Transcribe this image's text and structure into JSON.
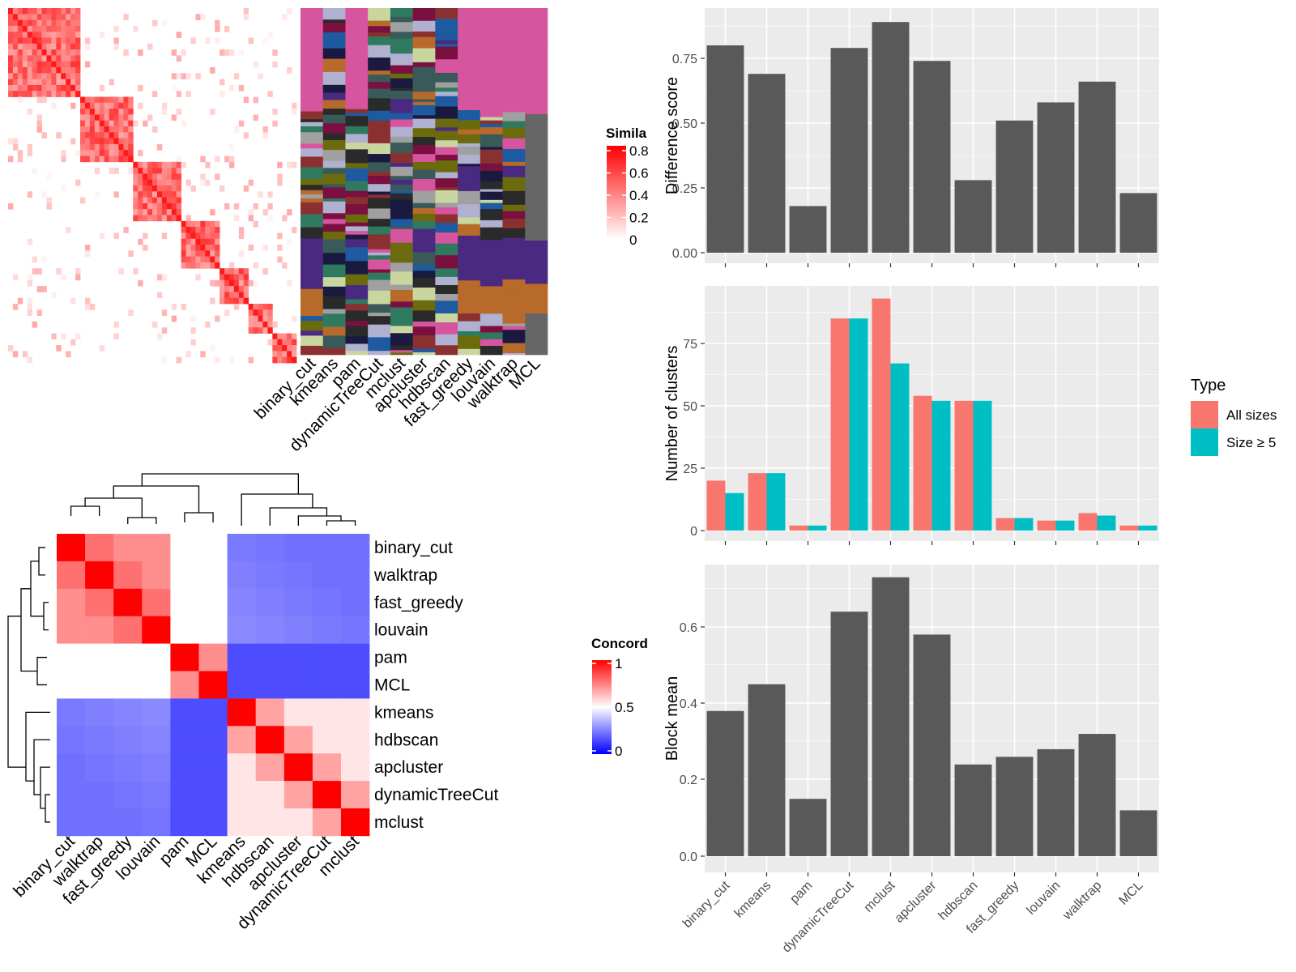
{
  "colors": {
    "panel_bg": "#ebebeb",
    "bar_gray": "#595959",
    "all_sizes": "#f8766d",
    "size_ge5": "#00bfc4",
    "sim_high": "#ff0000",
    "conc_high": "#ff0000",
    "conc_low": "#0000ff",
    "magenta_band": "#d6559e",
    "purple_band": "#4a2a80",
    "orange_band": "#b86a2a",
    "gray_col": "#666666"
  },
  "heatmap1": {
    "legend_title": "Simila",
    "legend_ticks": [
      "0.8",
      "0.6",
      "0.4",
      "0.2",
      "0"
    ],
    "columns": [
      "binary_cut",
      "kmeans",
      "pam",
      "dynamicTreeCut",
      "mclust",
      "apcluster",
      "hdbscan",
      "fast_greedy",
      "louvain",
      "walktrap",
      "MCL"
    ]
  },
  "heatmap2": {
    "legend_title": "Concord",
    "legend_ticks": [
      "1",
      "0.5",
      "0"
    ],
    "rows": [
      "binary_cut",
      "walktrap",
      "fast_greedy",
      "louvain",
      "pam",
      "MCL",
      "kmeans",
      "hdbscan",
      "apcluster",
      "dynamicTreeCut",
      "mclust"
    ]
  },
  "chart_data": [
    {
      "type": "bar",
      "categories": [
        "binary_cut",
        "kmeans",
        "pam",
        "dynamicTreeCut",
        "mclust",
        "apcluster",
        "hdbscan",
        "fast_greedy",
        "louvain",
        "walktrap",
        "MCL"
      ],
      "values": [
        0.8,
        0.69,
        0.18,
        0.79,
        0.89,
        0.74,
        0.28,
        0.51,
        0.58,
        0.66,
        0.23
      ],
      "ylabel": "Difference score",
      "yticks": [
        "0.00",
        "0.25",
        "0.50",
        "0.75"
      ],
      "ylim": [
        0,
        0.9
      ]
    },
    {
      "type": "bar",
      "categories": [
        "binary_cut",
        "kmeans",
        "pam",
        "dynamicTreeCut",
        "mclust",
        "apcluster",
        "hdbscan",
        "fast_greedy",
        "louvain",
        "walktrap",
        "MCL"
      ],
      "ylabel": "Number of clusters",
      "yticks": [
        "0",
        "25",
        "50",
        "75"
      ],
      "ylim": [
        0,
        97
      ],
      "legend_title": "Type",
      "legend_position": "right",
      "series": [
        {
          "name": "All sizes",
          "values": [
            20,
            23,
            2,
            85,
            93,
            54,
            52,
            5,
            4,
            7,
            2
          ]
        },
        {
          "name": "Size ≥ 5",
          "values": [
            15,
            23,
            2,
            85,
            67,
            52,
            52,
            5,
            4,
            6,
            2
          ]
        }
      ]
    },
    {
      "type": "bar",
      "categories": [
        "binary_cut",
        "kmeans",
        "pam",
        "dynamicTreeCut",
        "mclust",
        "apcluster",
        "hdbscan",
        "fast_greedy",
        "louvain",
        "walktrap",
        "MCL"
      ],
      "values": [
        0.38,
        0.45,
        0.15,
        0.64,
        0.73,
        0.58,
        0.24,
        0.26,
        0.28,
        0.32,
        0.12
      ],
      "ylabel": "Block mean",
      "yticks": [
        "0.0",
        "0.2",
        "0.4",
        "0.6"
      ],
      "ylim": [
        0,
        0.76
      ]
    }
  ]
}
